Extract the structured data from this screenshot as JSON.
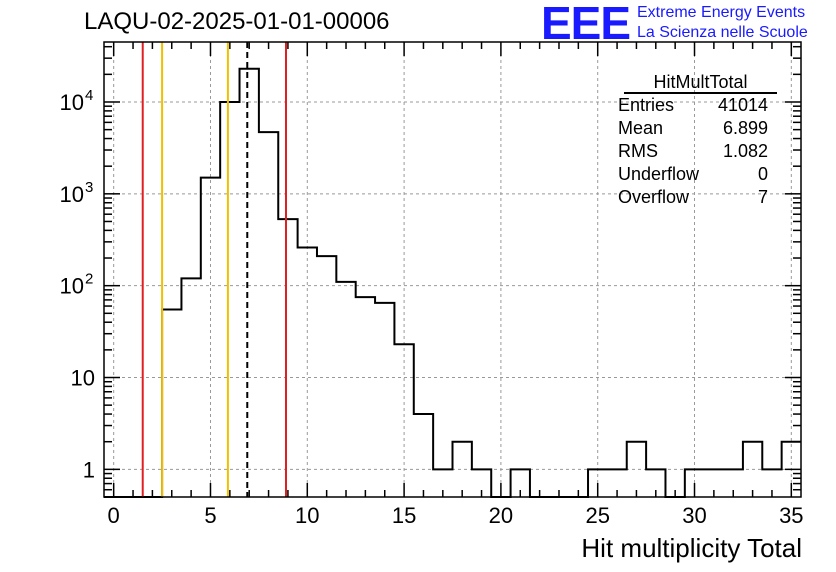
{
  "title": "LAQU-02-2025-01-01-00006",
  "logo": {
    "text": "EEE",
    "line1": "Extreme Energy Events",
    "line2": "La Scienza nelle Scuole",
    "color": "#1a1aff"
  },
  "stats": {
    "title": "HitMultTotal",
    "rows": [
      {
        "label": "Entries",
        "value": "41014"
      },
      {
        "label": "Mean",
        "value": "6.899"
      },
      {
        "label": "RMS",
        "value": "1.082"
      },
      {
        "label": "Underflow",
        "value": "0"
      },
      {
        "label": "Overflow",
        "value": "7"
      }
    ]
  },
  "chart_data": {
    "type": "histogram",
    "xlabel": "Hit multiplicity Total",
    "ylabel": "",
    "xlim": [
      -0.5,
      35.5
    ],
    "ylim": [
      0.5,
      45000
    ],
    "yscale": "log",
    "grid": true,
    "x_ticks": [
      "0",
      "5",
      "10",
      "15",
      "20",
      "25",
      "30",
      "35"
    ],
    "y_ticks": [
      {
        "value": 1,
        "label": "1",
        "sup": ""
      },
      {
        "value": 10,
        "label": "10",
        "sup": ""
      },
      {
        "value": 100,
        "label": "10",
        "sup": "2"
      },
      {
        "value": 1000,
        "label": "10",
        "sup": "3"
      },
      {
        "value": 10000,
        "label": "10",
        "sup": "4"
      }
    ],
    "bin_width": 1,
    "bins_centers": [
      0,
      1,
      2,
      3,
      4,
      5,
      6,
      7,
      8,
      9,
      10,
      11,
      12,
      13,
      14,
      15,
      16,
      17,
      18,
      19,
      20,
      21,
      22,
      23,
      24,
      25,
      26,
      27,
      28,
      29,
      30,
      31,
      32,
      33,
      34,
      35
    ],
    "counts": [
      0,
      0,
      0,
      55,
      120,
      1500,
      10000,
      23000,
      4700,
      530,
      260,
      210,
      110,
      75,
      65,
      23,
      4,
      1,
      2,
      1,
      0,
      1,
      0,
      0,
      0,
      1,
      1,
      2,
      1,
      0,
      1,
      1,
      1,
      2,
      1,
      2
    ],
    "vertical_lines": [
      {
        "x": 1.5,
        "color": "#e02020",
        "style": "solid"
      },
      {
        "x": 2.5,
        "color": "#f0c000",
        "style": "solid"
      },
      {
        "x": 5.9,
        "color": "#f0c000",
        "style": "solid"
      },
      {
        "x": 6.9,
        "color": "#000000",
        "style": "dashed"
      },
      {
        "x": 8.9,
        "color": "#e02020",
        "style": "solid"
      }
    ]
  }
}
